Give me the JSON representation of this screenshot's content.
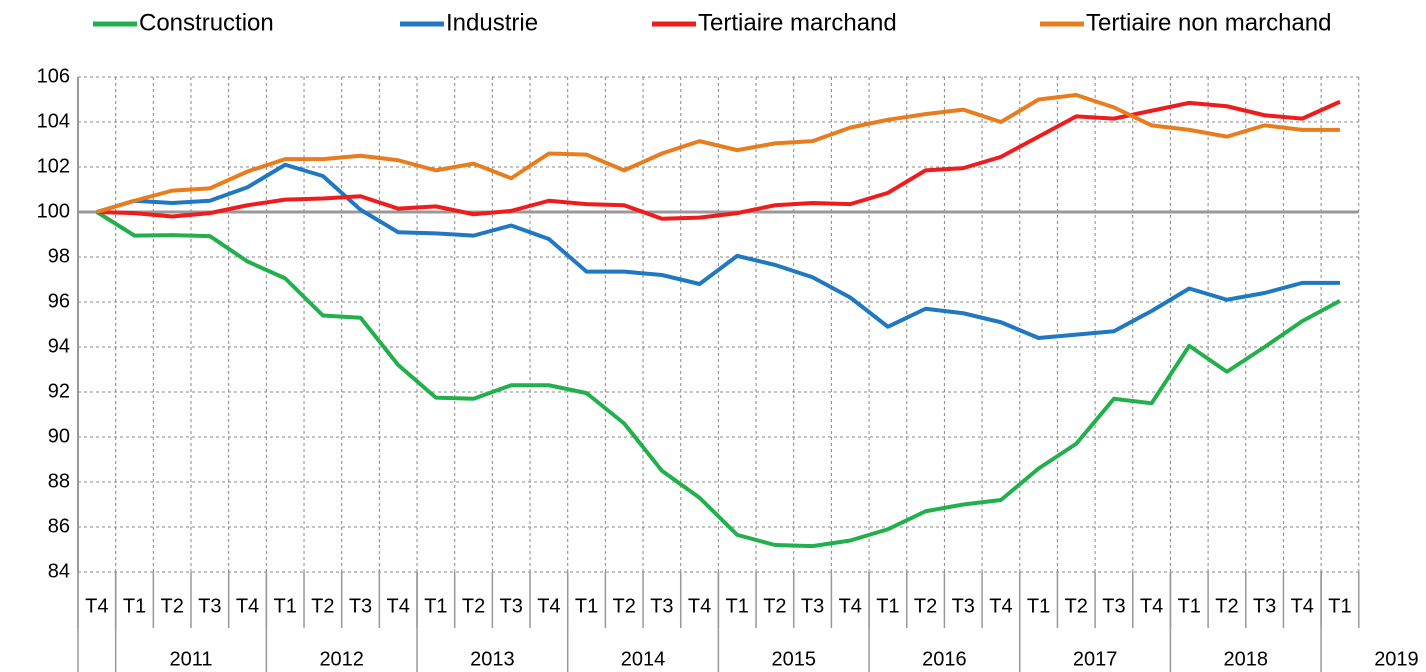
{
  "chart_data": {
    "type": "line",
    "categories": [
      "T4",
      "T1",
      "T2",
      "T3",
      "T4",
      "T1",
      "T2",
      "T3",
      "T4",
      "T1",
      "T2",
      "T3",
      "T4",
      "T1",
      "T2",
      "T3",
      "T4",
      "T1",
      "T2",
      "T3",
      "T4",
      "T1",
      "T2",
      "T3",
      "T4",
      "T1",
      "T2",
      "T3",
      "T4",
      "T1",
      "T2",
      "T3",
      "T4",
      "T1"
    ],
    "years": [
      "2011",
      "2012",
      "2013",
      "2014",
      "2015",
      "2016",
      "2017",
      "2018",
      "2019"
    ],
    "ylim": [
      84,
      106
    ],
    "yticks": [
      84,
      86,
      88,
      90,
      92,
      94,
      96,
      98,
      100,
      102,
      104,
      106
    ],
    "grid": true,
    "x_axis_crosses": 100,
    "legend": "top",
    "series": [
      {
        "name": "Construction",
        "color": "#21b04b",
        "values": [
          100,
          98.95,
          98.97,
          98.93,
          97.8,
          97.05,
          95.4,
          95.3,
          93.2,
          91.75,
          91.7,
          92.3,
          92.3,
          91.95,
          90.6,
          88.5,
          87.3,
          85.65,
          85.2,
          85.15,
          85.4,
          85.9,
          86.7,
          87.0,
          87.2,
          88.6,
          89.7,
          91.7,
          91.5,
          94.05,
          92.9,
          94.0,
          95.15,
          96.05
        ]
      },
      {
        "name": "Industrie",
        "color": "#1f78c1",
        "values": [
          100,
          100.5,
          100.4,
          100.5,
          101.1,
          102.1,
          101.6,
          100.1,
          99.1,
          99.05,
          98.95,
          99.4,
          98.8,
          97.35,
          97.35,
          97.2,
          96.8,
          98.05,
          97.65,
          97.1,
          96.2,
          94.9,
          95.7,
          95.5,
          95.1,
          94.4,
          94.55,
          94.7,
          95.6,
          96.6,
          96.1,
          96.4,
          96.85,
          96.85
        ]
      },
      {
        "name": "Tertiaire marchand",
        "color": "#ee1c1c",
        "values": [
          100,
          99.95,
          99.8,
          99.95,
          100.3,
          100.55,
          100.6,
          100.7,
          100.15,
          100.25,
          99.9,
          100.05,
          100.5,
          100.35,
          100.3,
          99.7,
          99.75,
          99.95,
          100.3,
          100.4,
          100.35,
          100.85,
          101.85,
          101.95,
          102.45,
          103.35,
          104.25,
          104.15,
          104.5,
          104.85,
          104.7,
          104.3,
          104.15,
          104.9
        ]
      },
      {
        "name": "Tertiaire non marchand",
        "color": "#e87d1e",
        "values": [
          100,
          100.5,
          100.95,
          101.05,
          101.8,
          102.35,
          102.35,
          102.5,
          102.3,
          101.85,
          102.15,
          101.5,
          102.6,
          102.55,
          101.85,
          102.6,
          103.15,
          102.75,
          103.05,
          103.15,
          103.75,
          104.1,
          104.35,
          104.55,
          104.0,
          105.0,
          105.2,
          104.65,
          103.85,
          103.65,
          103.35,
          103.85,
          103.65,
          103.65
        ]
      }
    ]
  }
}
